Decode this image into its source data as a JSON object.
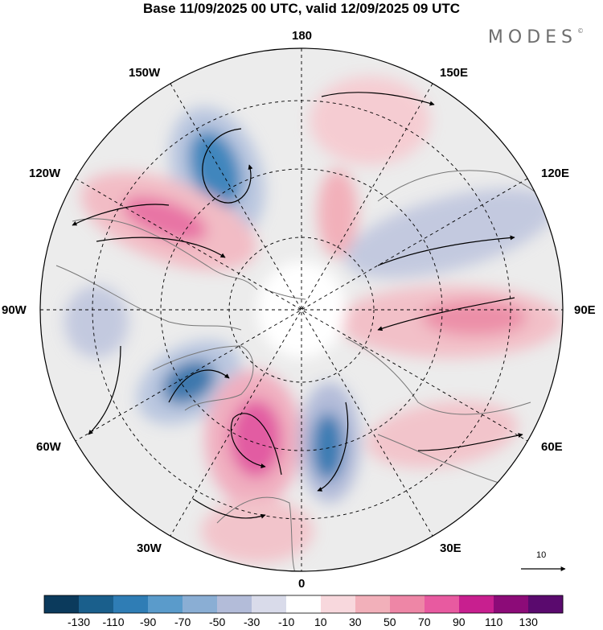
{
  "header": {
    "title": "Base 11/09/2025 00 UTC, valid 12/09/2025 09 UTC",
    "brand": "MODES",
    "brand_mark": "©"
  },
  "map": {
    "projection": "north-polar-stereographic",
    "longitude_labels": {
      "top": "180",
      "top_right": "150E",
      "right_upper": "120E",
      "right": "90E",
      "right_lower": "60E",
      "bottom_right": "30E",
      "bottom": "0",
      "bottom_left": "30W",
      "left_lower": "60W",
      "left": "90W",
      "left_upper": "120W",
      "top_left": "150W"
    },
    "wind_reference_vector": "10"
  },
  "colorbar": {
    "colors": [
      "#0b3a5c",
      "#1a5f8c",
      "#2f7db5",
      "#5a9bcb",
      "#8aaed4",
      "#b3bcd9",
      "#d9dbea",
      "#ffffff",
      "#f8d8dd",
      "#f2b0ba",
      "#ee86a6",
      "#e85aa0",
      "#c81f8f",
      "#8c0b78",
      "#5a0a6e"
    ],
    "tick_labels": [
      "-130",
      "-110",
      "-90",
      "-70",
      "-50",
      "-30",
      "-10",
      "10",
      "30",
      "50",
      "70",
      "90",
      "110",
      "130"
    ]
  }
}
